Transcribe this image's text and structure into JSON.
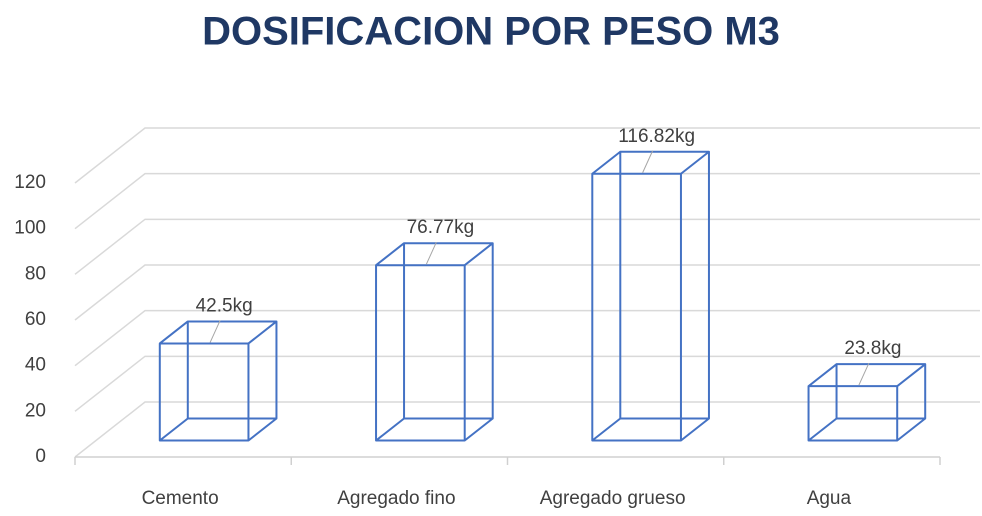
{
  "chart_data": {
    "type": "bar3d",
    "title": "DOSIFICACION POR PESO M3",
    "categories": [
      "Cemento",
      "Agregado fino",
      "Agregado grueso",
      "Agua"
    ],
    "values": [
      42.5,
      76.77,
      116.82,
      23.8
    ],
    "value_labels": [
      "42.5kg",
      "76.77kg",
      "116.82kg",
      "23.8kg"
    ],
    "color": "#4472c4",
    "ylim": [
      0,
      120
    ],
    "yticks": [
      0,
      20,
      40,
      60,
      80,
      100,
      120
    ],
    "grid": true
  }
}
